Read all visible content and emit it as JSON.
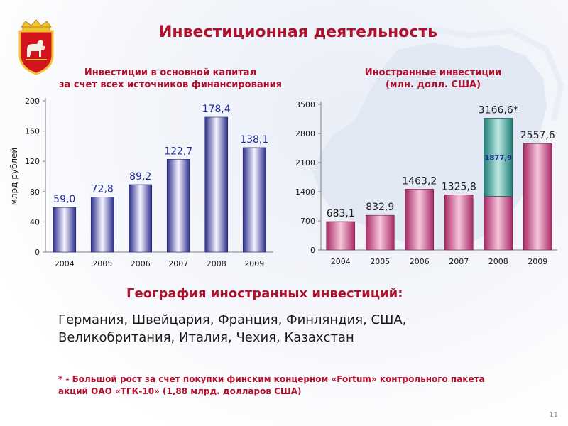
{
  "title": "Инвестиционная деятельность",
  "chart_data": [
    {
      "type": "bar",
      "title": "Инвестиции в основной капитал",
      "subtitle": "за счет всех источников финансирования",
      "ylabel": "млрд рублей",
      "xlabel": "",
      "categories": [
        "2004",
        "2005",
        "2006",
        "2007",
        "2008",
        "2009"
      ],
      "values": [
        59.0,
        72.8,
        89.2,
        122.7,
        178.4,
        138.1
      ],
      "value_labels": [
        "59,0",
        "72,8",
        "89,2",
        "122,7",
        "178,4",
        "138,1"
      ],
      "yticks": [
        "0",
        "40",
        "80",
        "120",
        "160",
        "200"
      ],
      "ylim": [
        0,
        200
      ],
      "bar_color": "#2e2f8c",
      "grid": false
    },
    {
      "type": "bar",
      "title": "Иностранные инвестиции",
      "subtitle": "(млн. долл. США)",
      "ylabel": "",
      "xlabel": "",
      "categories": [
        "2004",
        "2005",
        "2006",
        "2007",
        "2008",
        "2009"
      ],
      "values": [
        683.1,
        832.9,
        1463.2,
        1325.8,
        3166.6,
        2557.6
      ],
      "value_labels": [
        "683,1",
        "832,9",
        "1463,2",
        "1325,8",
        "3166,6*",
        "2557,6"
      ],
      "yticks": [
        "0",
        "700",
        "1400",
        "2100",
        "2800",
        "3500"
      ],
      "ylim": [
        0,
        3500
      ],
      "bar_color": "#b83a78",
      "stacked_segment": {
        "category": "2008",
        "value": 1877.9,
        "label": "1877,9",
        "color": "#2f8f86"
      },
      "grid": false
    }
  ],
  "geography": {
    "title": "География иностранных инвестиций:",
    "countries": "Германия, Швейцария, Франция, Финляндия, США, Великобритания, Италия, Чехия, Казахстан"
  },
  "footnote": "* - Большой рост за счет покупки финским концерном «Fortum» контрольного пакета акций ОАО «ТГК-10» (1,88 млрд. долларов США)",
  "page_number": "11"
}
